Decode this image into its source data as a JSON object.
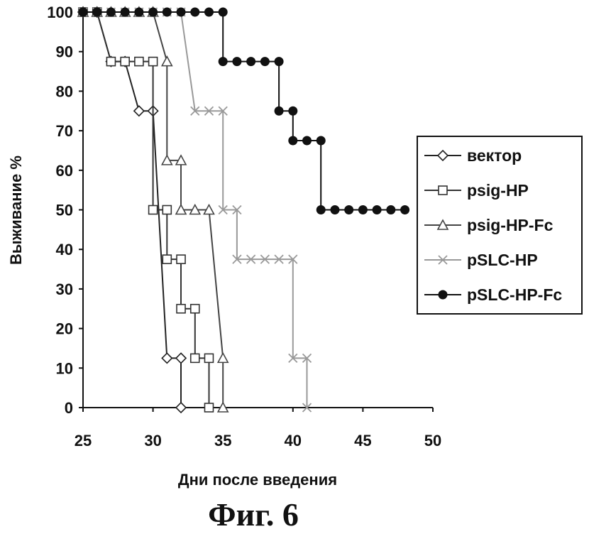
{
  "figure_caption": "Фиг. 6",
  "chart_data": {
    "type": "line",
    "step": true,
    "xlabel": "Дни после введения",
    "ylabel": "Выживание %",
    "xlim": [
      25,
      50
    ],
    "ylim": [
      0,
      100
    ],
    "xticks": [
      25,
      30,
      35,
      40,
      45,
      50
    ],
    "yticks": [
      0,
      10,
      20,
      30,
      40,
      50,
      60,
      70,
      80,
      90,
      100
    ],
    "grid": false,
    "legend_position": "right",
    "series": [
      {
        "name": "вектор",
        "marker": "diamond",
        "color": "#222222",
        "points": [
          [
            25,
            100
          ],
          [
            26,
            100
          ],
          [
            27,
            87.5
          ],
          [
            28,
            87.5
          ],
          [
            29,
            75
          ],
          [
            30,
            75
          ],
          [
            31,
            12.5
          ],
          [
            32,
            12.5
          ],
          [
            32,
            0
          ]
        ]
      },
      {
        "name": "psig-HP",
        "marker": "square",
        "color": "#333333",
        "points": [
          [
            25,
            100
          ],
          [
            26,
            100
          ],
          [
            27,
            87.5
          ],
          [
            28,
            87.5
          ],
          [
            29,
            87.5
          ],
          [
            30,
            87.5
          ],
          [
            30,
            50
          ],
          [
            31,
            50
          ],
          [
            31,
            37.5
          ],
          [
            32,
            37.5
          ],
          [
            32,
            25
          ],
          [
            33,
            25
          ],
          [
            33,
            12.5
          ],
          [
            34,
            12.5
          ],
          [
            34,
            0
          ]
        ]
      },
      {
        "name": "psig-HP-Fc",
        "marker": "triangle",
        "color": "#444444",
        "points": [
          [
            25,
            100
          ],
          [
            26,
            100
          ],
          [
            27,
            100
          ],
          [
            28,
            100
          ],
          [
            29,
            100
          ],
          [
            30,
            100
          ],
          [
            31,
            87.5
          ],
          [
            31,
            62.5
          ],
          [
            32,
            62.5
          ],
          [
            32,
            50
          ],
          [
            33,
            50
          ],
          [
            34,
            50
          ],
          [
            35,
            12.5
          ],
          [
            35,
            0
          ]
        ]
      },
      {
        "name": "pSLC-HP",
        "marker": "x",
        "color": "#999999",
        "points": [
          [
            25,
            100
          ],
          [
            26,
            100
          ],
          [
            27,
            100
          ],
          [
            28,
            100
          ],
          [
            29,
            100
          ],
          [
            30,
            100
          ],
          [
            31,
            100
          ],
          [
            32,
            100
          ],
          [
            33,
            75
          ],
          [
            34,
            75
          ],
          [
            35,
            75
          ],
          [
            35,
            50
          ],
          [
            36,
            50
          ],
          [
            36,
            37.5
          ],
          [
            37,
            37.5
          ],
          [
            38,
            37.5
          ],
          [
            39,
            37.5
          ],
          [
            40,
            37.5
          ],
          [
            40,
            12.5
          ],
          [
            41,
            12.5
          ],
          [
            41,
            0
          ]
        ]
      },
      {
        "name": "pSLC-HP-Fc",
        "marker": "circle",
        "color": "#111111",
        "points": [
          [
            25,
            100
          ],
          [
            26,
            100
          ],
          [
            27,
            100
          ],
          [
            28,
            100
          ],
          [
            29,
            100
          ],
          [
            30,
            100
          ],
          [
            31,
            100
          ],
          [
            32,
            100
          ],
          [
            33,
            100
          ],
          [
            34,
            100
          ],
          [
            35,
            100
          ],
          [
            35,
            87.5
          ],
          [
            36,
            87.5
          ],
          [
            37,
            87.5
          ],
          [
            38,
            87.5
          ],
          [
            39,
            87.5
          ],
          [
            39,
            75
          ],
          [
            40,
            75
          ],
          [
            40,
            67.5
          ],
          [
            41,
            67.5
          ],
          [
            42,
            67.5
          ],
          [
            42,
            50
          ],
          [
            43,
            50
          ],
          [
            44,
            50
          ],
          [
            45,
            50
          ],
          [
            46,
            50
          ],
          [
            47,
            50
          ],
          [
            48,
            50
          ]
        ]
      }
    ]
  }
}
